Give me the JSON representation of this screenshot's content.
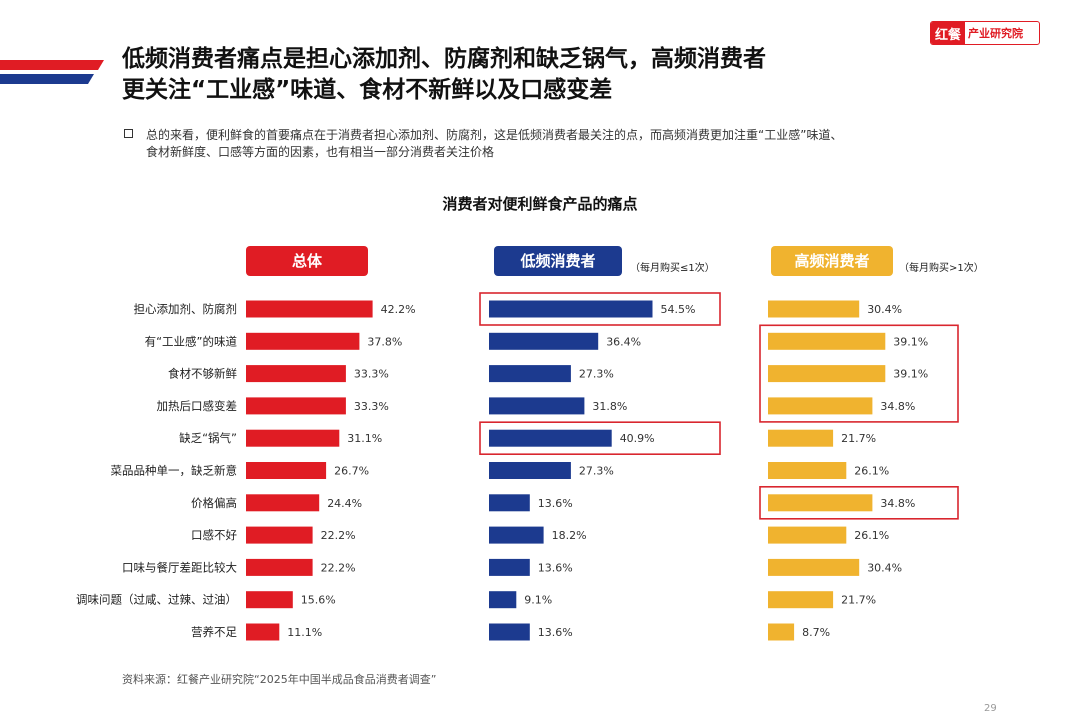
{
  "header": {
    "title_line1": "低频消费者痛点是担心添加剂、防腐剂和缺乏锅气，高频消费者",
    "title_line2": "更关注“工业感”味道、食材不新鲜以及口感变差",
    "logo_mark": "红餐",
    "logo_text": "产业研究院"
  },
  "summary": {
    "line1": "总的来看，便利鲜食的首要痛点在于消费者担心添加剂、防腐剂，这是低频消费者最关注的点，而高频消费更加注重“工业感”味道、",
    "line2": "食材新鲜度、口感等方面的因素，也有相当一部分消费者关注价格"
  },
  "footer": {
    "source": "资料来源：红餐产业研究院“2025年中国半成品食品消费者调查”",
    "page": "29"
  },
  "colors": {
    "red": "#e01c24",
    "blue": "#1c3a8f",
    "gold": "#f0b32f",
    "highlight": "#d9262e",
    "navy_strip": "#1c3a8f"
  },
  "chart_data": {
    "type": "bar",
    "orientation": "horizontal",
    "title": "消费者对便利鲜食产品的痛点",
    "categories": [
      "担心添加剂、防腐剂",
      "有“工业感”的味道",
      "食材不够新鲜",
      "加热后口感变差",
      "缺乏“锅气”",
      "菜品品种单一，缺乏新意",
      "价格偏高",
      "口感不好",
      "口味与餐厅差距比较大",
      "调味问题（过咸、过辣、过油）",
      "营养不足"
    ],
    "series": [
      {
        "name": "总体",
        "note": "",
        "color": "#e01c24",
        "values": [
          42.2,
          37.8,
          33.3,
          33.3,
          31.1,
          26.7,
          24.4,
          22.2,
          22.2,
          15.6,
          11.1
        ],
        "labels": [
          "42.2%",
          "37.8%",
          "33.3%",
          "33.3%",
          "31.1%",
          "26.7%",
          "24.4%",
          "22.2%",
          "22.2%",
          "15.6%",
          "11.1%"
        ],
        "highlights": []
      },
      {
        "name": "低频消费者",
        "note": "（每月购买≤1次）",
        "color": "#1c3a8f",
        "values": [
          54.5,
          36.4,
          27.3,
          31.8,
          40.9,
          27.3,
          13.6,
          18.2,
          13.6,
          9.1,
          13.6
        ],
        "labels": [
          "54.5%",
          "36.4%",
          "27.3%",
          "31.8%",
          "40.9%",
          "27.3%",
          "13.6%",
          "18.2%",
          "13.6%",
          "9.1%",
          "13.6%"
        ],
        "highlights": [
          [
            0,
            0
          ],
          [
            4,
            4
          ]
        ]
      },
      {
        "name": "高频消费者",
        "note": "（每月购买>1次）",
        "color": "#f0b32f",
        "values": [
          30.4,
          39.1,
          39.1,
          34.8,
          21.7,
          26.1,
          34.8,
          26.1,
          30.4,
          21.7,
          8.7
        ],
        "labels": [
          "30.4%",
          "39.1%",
          "39.1%",
          "34.8%",
          "21.7%",
          "26.1%",
          "34.8%",
          "26.1%",
          "30.4%",
          "21.7%",
          "8.7%"
        ],
        "highlights": [
          [
            1,
            3
          ],
          [
            6,
            6
          ]
        ]
      }
    ],
    "grid": false,
    "legend": "none"
  }
}
